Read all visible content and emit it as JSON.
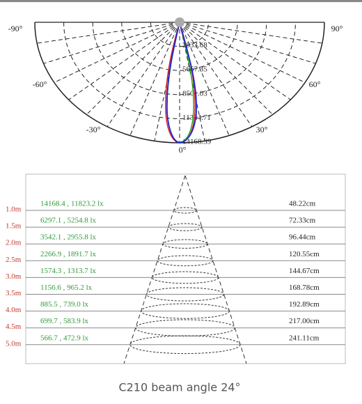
{
  "polar": {
    "angle_labels": {
      "left90": "-90°",
      "right90": "90°",
      "left60": "-60°",
      "right60": "60°",
      "left30": "-30°",
      "right30": "30°",
      "zero": "0°"
    },
    "intensity_labels": [
      "2833.68",
      "5667.35",
      "8501.03",
      "11334.71",
      "14168.39"
    ]
  },
  "table": {
    "rows": [
      {
        "distance": "1.0m",
        "illuminance": "14168.4 , 11823.2 lx",
        "diameter": "48.22cm"
      },
      {
        "distance": "1.5m",
        "illuminance": "6297.1 , 5254.8 lx",
        "diameter": "72.33cm"
      },
      {
        "distance": "2.0m",
        "illuminance": "3542.1 , 2955.8 lx",
        "diameter": "96.44cm"
      },
      {
        "distance": "2.5m",
        "illuminance": "2266.9 , 1891.7 lx",
        "diameter": "120.55cm"
      },
      {
        "distance": "3.0m",
        "illuminance": "1574.3 , 1313.7 lx",
        "diameter": "144.67cm"
      },
      {
        "distance": "3.5m",
        "illuminance": "1156.6 , 965.2 lx",
        "diameter": "168.78cm"
      },
      {
        "distance": "4.0m",
        "illuminance": "885.5 , 739.0 lx",
        "diameter": "192.89cm"
      },
      {
        "distance": "4.5m",
        "illuminance": "699.7 , 583.9 lx",
        "diameter": "217.00cm"
      },
      {
        "distance": "5.0m",
        "illuminance": "566.7 , 472.9 lx",
        "diameter": "241.11cm"
      }
    ]
  },
  "caption": "C210 beam angle 24°"
}
